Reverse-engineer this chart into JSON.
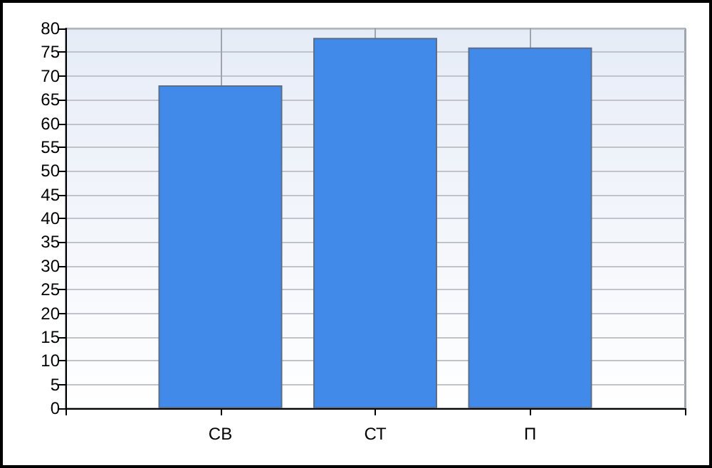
{
  "chart_data": {
    "type": "bar",
    "categories": [
      null,
      "СВ",
      "СТ",
      "П",
      null
    ],
    "values": [
      null,
      68,
      78,
      76,
      null
    ],
    "color": "#418ae9",
    "ylim": [
      0,
      80
    ],
    "yticks": [
      0,
      5,
      10,
      15,
      20,
      25,
      30,
      35,
      40,
      45,
      50,
      55,
      60,
      65,
      70,
      75,
      80
    ],
    "grid": true
  }
}
